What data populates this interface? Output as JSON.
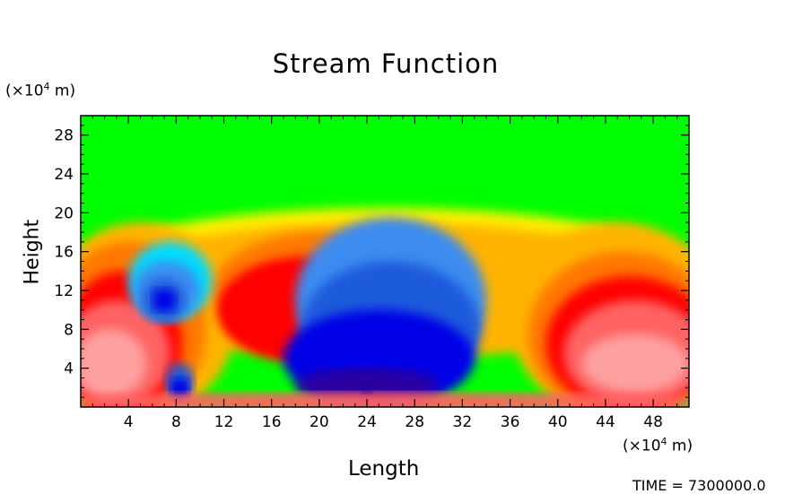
{
  "chart_data": {
    "type": "heatmap",
    "title": "Stream Function",
    "xlabel": "Length",
    "ylabel": "Height",
    "x_unit": "(×10⁴ m)",
    "y_unit": "(×10⁴ m)",
    "xlim": [
      0,
      51
    ],
    "ylim": [
      0,
      30
    ],
    "xticks": [
      4,
      8,
      12,
      16,
      20,
      24,
      28,
      32,
      36,
      40,
      44,
      48
    ],
    "yticks": [
      4,
      8,
      12,
      16,
      20,
      24,
      28
    ],
    "colormap": [
      "#2a00a0",
      "#0000e6",
      "#1e5adc",
      "#3c8cf0",
      "#00dcff",
      "#00ff00",
      "#aaf000",
      "#fff000",
      "#ffb400",
      "#ff7800",
      "#ff0000",
      "#ff6464",
      "#ffa0a0"
    ],
    "features": [
      {
        "label": "high",
        "x": 3,
        "y": 4.5,
        "level": 12
      },
      {
        "label": "high",
        "x": 46,
        "y": 4.5,
        "level": 12
      },
      {
        "label": "low",
        "x": 24,
        "y": 2,
        "level": 0
      },
      {
        "label": "low",
        "x": 7,
        "y": 11,
        "level": 1
      },
      {
        "label": "low",
        "x": 8.3,
        "y": 2,
        "level": 1
      }
    ],
    "grid": false
  },
  "footer": {
    "time_text": "TIME = 7300000.0"
  }
}
